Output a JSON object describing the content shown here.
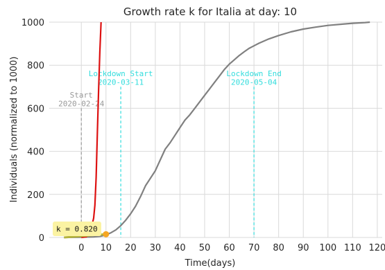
{
  "chart_data": {
    "type": "line",
    "title": "Growth rate k for Italia at day: 10",
    "xlabel": "Time(days)",
    "ylabel": "Individuals (normalized to 1000)",
    "xlim": [
      -13,
      122
    ],
    "ylim": [
      0,
      1000
    ],
    "xticks": [
      0,
      10,
      20,
      30,
      40,
      50,
      60,
      70,
      80,
      90,
      100,
      110,
      120
    ],
    "yticks": [
      0,
      200,
      400,
      600,
      800,
      1000
    ],
    "grid": true,
    "series": [
      {
        "color": "#808080",
        "x": [
          -7,
          0,
          5,
          8,
          10,
          12,
          14,
          16,
          18,
          20,
          22,
          24,
          26,
          28,
          30,
          32,
          34,
          36,
          38,
          40,
          42,
          44,
          46,
          48,
          50,
          52,
          54,
          56,
          58,
          60,
          62,
          64,
          66,
          68,
          70,
          72,
          74,
          76,
          78,
          80,
          85,
          90,
          95,
          100,
          105,
          110,
          115,
          117
        ],
        "y": [
          0,
          1,
          3,
          6,
          12,
          22,
          35,
          55,
          80,
          110,
          145,
          190,
          240,
          275,
          310,
          360,
          410,
          440,
          475,
          510,
          545,
          570,
          600,
          630,
          660,
          690,
          720,
          750,
          780,
          805,
          825,
          845,
          862,
          878,
          890,
          902,
          912,
          922,
          930,
          938,
          955,
          968,
          977,
          985,
          990,
          995,
          998,
          1000
        ]
      },
      {
        "color": "#dd1111",
        "x": [
          0,
          2,
          3,
          4,
          5,
          5.5,
          6,
          6.5,
          7,
          7.5,
          8
        ],
        "y": [
          0,
          3,
          12,
          40,
          90,
          150,
          280,
          480,
          680,
          860,
          1000
        ]
      },
      {
        "color": "#b5b43c",
        "x": [
          -7,
          10
        ],
        "y": [
          0,
          15
        ]
      }
    ],
    "vlines": [
      {
        "x": 0,
        "color": "#999999",
        "ymax": 600,
        "label_lines": [
          "Start",
          "2020-02-24"
        ]
      },
      {
        "x": 16,
        "color": "#33dddd",
        "ymax": 700,
        "label_lines": [
          "Lockdown Start",
          "2020-03-11"
        ]
      },
      {
        "x": 70,
        "color": "#33dddd",
        "ymax": 700,
        "label_lines": [
          "Lockdown End",
          "2020-05-04"
        ]
      }
    ],
    "marker": {
      "x": 10,
      "y": 15,
      "color": "#f5a623"
    },
    "annotation": {
      "text": "k = 0.820",
      "background": "#fbf3a3"
    }
  }
}
